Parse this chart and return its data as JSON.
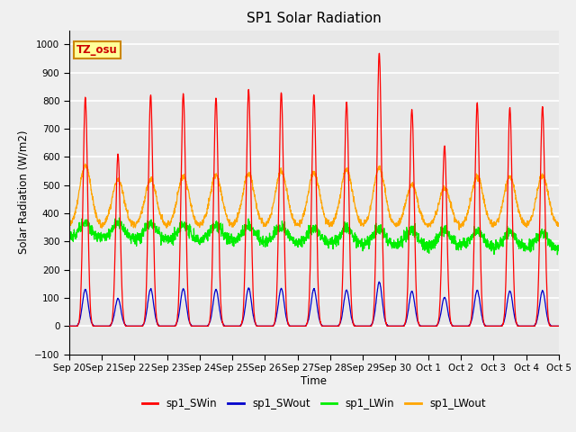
{
  "title": "SP1 Solar Radiation",
  "ylabel": "Solar Radiation (W/m2)",
  "xlabel": "Time",
  "ylim": [
    -100,
    1050
  ],
  "yticks": [
    -100,
    0,
    100,
    200,
    300,
    400,
    500,
    600,
    700,
    800,
    900,
    1000
  ],
  "x_tick_labels": [
    "Sep 20",
    "Sep 21",
    "Sep 22",
    "Sep 23",
    "Sep 24",
    "Sep 25",
    "Sep 26",
    "Sep 27",
    "Sep 28",
    "Sep 29",
    "Sep 30",
    "Oct 1",
    "Oct 2",
    "Oct 3",
    "Oct 4",
    "Oct 5"
  ],
  "colors": {
    "sp1_SWin": "#FF0000",
    "sp1_SWout": "#0000CC",
    "sp1_LWin": "#00EE00",
    "sp1_LWout": "#FFA500"
  },
  "annotation_text": "TZ_osu",
  "annotation_bg": "#FFFF99",
  "annotation_border": "#CC8800",
  "background_color": "#E8E8E8",
  "grid_color": "#FFFFFF",
  "fig_bg": "#F0F0F0",
  "n_days": 15,
  "n_points_per_day": 144,
  "sw_peaks": [
    810,
    610,
    820,
    825,
    810,
    840,
    830,
    820,
    795,
    970,
    770,
    640,
    790,
    775,
    780
  ],
  "lw_out_day_peaks": [
    570,
    520,
    520,
    530,
    535,
    540,
    550,
    545,
    555,
    560,
    500,
    490,
    530,
    530,
    535
  ],
  "lw_in_base": 315,
  "lw_out_base": 355
}
